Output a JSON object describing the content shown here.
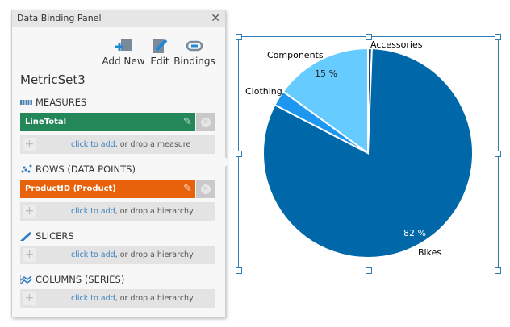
{
  "panel": {
    "title": "Data Binding Panel",
    "close_icon": "close-icon",
    "toolbar": [
      {
        "label": "Add New",
        "icon": "add-new-icon"
      },
      {
        "label": "Edit",
        "icon": "edit-icon"
      },
      {
        "label": "Bindings",
        "icon": "bindings-icon"
      }
    ],
    "metricset": "MetricSet3",
    "sections": {
      "measures": {
        "title": "MEASURES",
        "item": "LineTotal",
        "item_color": "#23875a",
        "add_link": "click to add",
        "add_rest": ", or drop a measure"
      },
      "rows": {
        "title": "ROWS (DATA POINTS)",
        "item": "ProductID (Product)",
        "item_color": "#e8620c",
        "add_link": "click to add",
        "add_rest": ", or drop a hierarchy"
      },
      "slicers": {
        "title": "SLICERS",
        "add_link": "click to add",
        "add_rest": ", or drop a hierarchy"
      },
      "columns": {
        "title": "COLUMNS (SERIES)",
        "add_link": "click to add",
        "add_rest": ", or drop a hierarchy"
      }
    }
  },
  "chart_data": {
    "type": "pie",
    "categories": [
      "Accessories",
      "Bikes",
      "Clothing",
      "Components"
    ],
    "values": [
      0.6,
      82,
      2.4,
      15
    ],
    "data_labels": [
      "",
      "82 %",
      "",
      "15 %"
    ],
    "colors": [
      "#1b3f6e",
      "#0068a8",
      "#1e97f0",
      "#66ccff"
    ],
    "start_angle_deg": 0,
    "direction": "clockwise"
  }
}
